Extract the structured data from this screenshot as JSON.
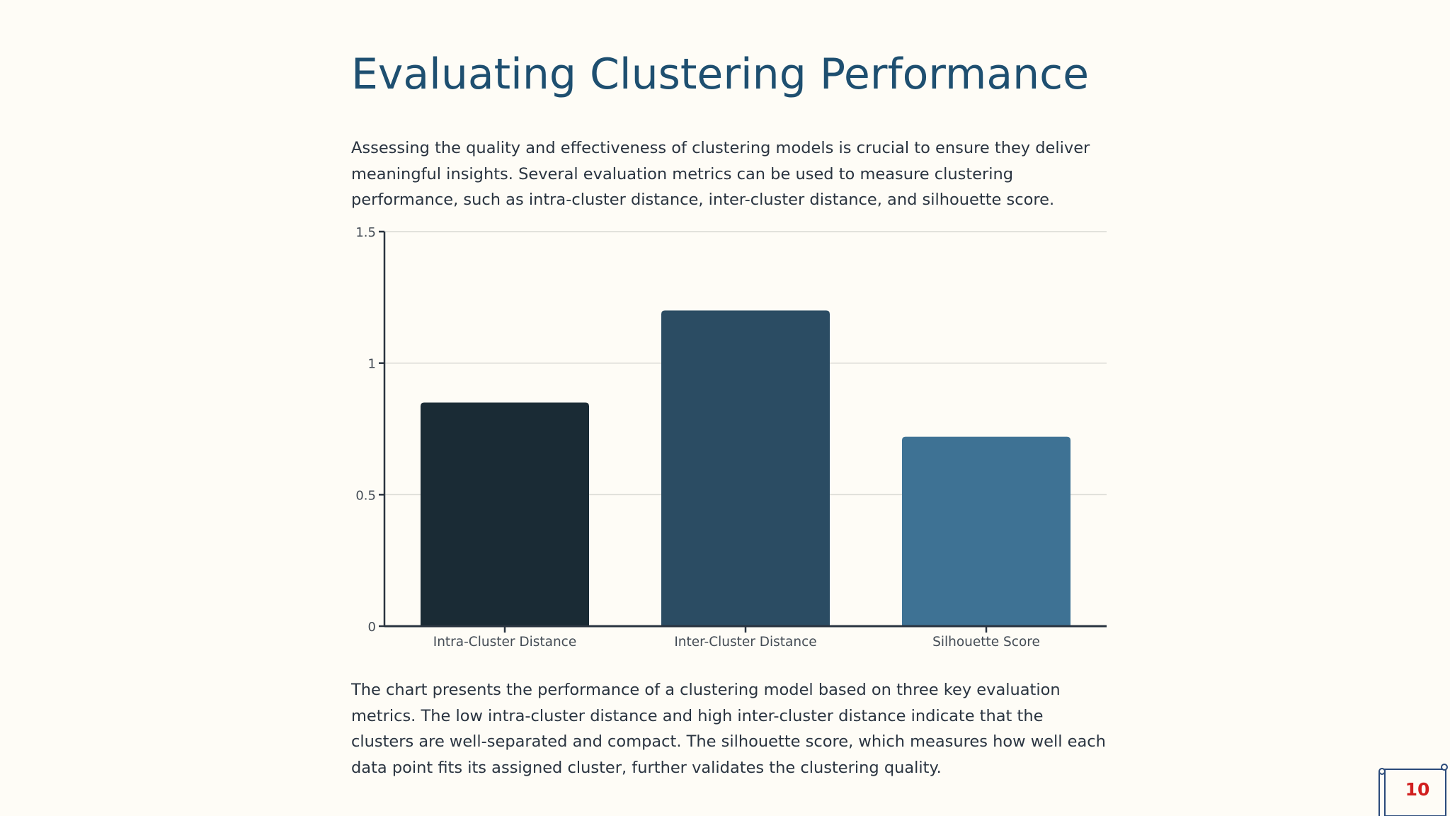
{
  "slide": {
    "title": "Evaluating Clustering Performance",
    "intro": "Assessing the quality and effectiveness of clustering models is crucial to ensure they deliver meaningful insights. Several evaluation metrics can be used to measure clustering performance, such as intra-cluster distance, inter-cluster distance, and silhouette score.",
    "summary": "The chart presents the performance of a clustering model based on three key evaluation metrics. The low intra-cluster distance and high inter-cluster distance indicate that the clusters are well-separated and compact. The silhouette score, which measures how well each data point fits its assigned cluster, further validates the clustering quality.",
    "page_number": "10"
  },
  "chart_data": {
    "type": "bar",
    "categories": [
      "Intra-Cluster Distance",
      "Inter-Cluster Distance",
      "Silhouette Score"
    ],
    "values": [
      0.85,
      1.2,
      0.72
    ],
    "colors": [
      "#1a2b35",
      "#2b4c63",
      "#3e7294"
    ],
    "ylim": [
      0,
      1.5
    ],
    "yticks": [
      0,
      0.5,
      1,
      1.5
    ],
    "ytick_labels": [
      "0",
      "0.5",
      "1",
      "1.5"
    ],
    "title": "",
    "xlabel": "",
    "ylabel": "",
    "grid": true,
    "legend": false
  },
  "colors": {
    "background": "#fefcf6",
    "title": "#1e4f70",
    "text": "#2a3440",
    "axis": "#2a3440",
    "grid": "#d9d9d3",
    "page_number": "#d11f1f",
    "badge_border": "#2a4a7a"
  },
  "icons": {
    "page_badge": "scroll-icon"
  }
}
